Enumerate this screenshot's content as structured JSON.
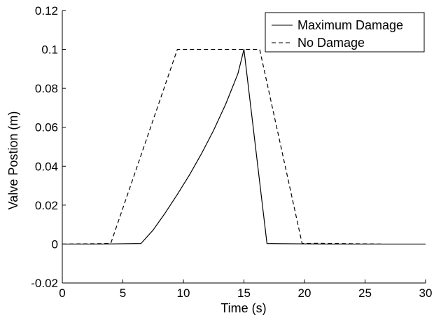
{
  "chart_data": {
    "type": "line",
    "title": "",
    "xlabel": "Time (s)",
    "ylabel": "Valve Postion (m)",
    "xlim": [
      0,
      30
    ],
    "ylim": [
      -0.02,
      0.12
    ],
    "xticks": [
      0,
      5,
      10,
      15,
      20,
      25,
      30
    ],
    "yticks": [
      -0.02,
      0,
      0.02,
      0.04,
      0.06,
      0.08,
      0.1,
      0.12
    ],
    "xtick_labels": [
      "0",
      "5",
      "10",
      "15",
      "20",
      "25",
      "30"
    ],
    "ytick_labels": [
      "-0.02",
      "0",
      "0.02",
      "0.04",
      "0.06",
      "0.08",
      "0.1",
      "0.12"
    ],
    "grid": false,
    "legend_position": "top-right",
    "series": [
      {
        "name": "Maximum Damage",
        "style": "solid",
        "color": "#000000",
        "x": [
          0,
          3,
          6.5,
          7.5,
          8.5,
          9.5,
          10.5,
          11.5,
          12.5,
          13.5,
          14.5,
          15,
          16.9,
          18,
          22,
          30
        ],
        "y": [
          0,
          0,
          0.0003,
          0.0072,
          0.016,
          0.0255,
          0.0355,
          0.0465,
          0.0585,
          0.072,
          0.0875,
          0.1,
          0.0003,
          0.0002,
          0,
          0
        ]
      },
      {
        "name": "No Damage",
        "style": "dashed",
        "color": "#000000",
        "x": [
          0,
          3,
          4,
          9.5,
          16.3,
          19.8,
          21,
          26.5
        ],
        "y": [
          0,
          0.0002,
          0.0003,
          0.1,
          0.1,
          0.0003,
          0.0004,
          0
        ]
      }
    ]
  }
}
